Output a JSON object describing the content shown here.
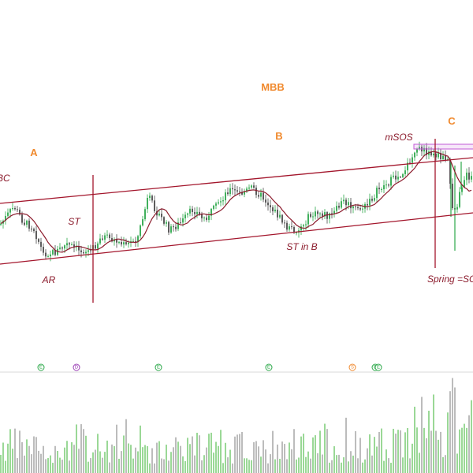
{
  "chart_data": {
    "type": "candlestick",
    "title": "",
    "colors": {
      "up": "#2ca84a",
      "down": "#4a4a4a",
      "ma": "#8b1a2b",
      "channel": "#a3162c",
      "phase_label": "#f0892d",
      "event_label": "#8b1a2b",
      "zone": "#c25bd6",
      "volume_up": "#8fd48b",
      "volume_down": "#b5b5b5",
      "divider": "#d9d9d9"
    },
    "phase_labels": [
      {
        "id": "mbb",
        "text": "MBB"
      },
      {
        "id": "a",
        "text": "A"
      },
      {
        "id": "b",
        "text": "B"
      },
      {
        "id": "c",
        "text": "C"
      }
    ],
    "event_labels": [
      {
        "id": "bc",
        "text": "BC"
      },
      {
        "id": "st",
        "text": "ST"
      },
      {
        "id": "ar",
        "text": "AR"
      },
      {
        "id": "st-in-b",
        "text": "ST in B"
      },
      {
        "id": "msos",
        "text": "mSOS"
      },
      {
        "id": "spring",
        "text": "Spring =SO"
      }
    ],
    "event_markers": [
      {
        "glyph": "E",
        "color": "#2ca84a"
      },
      {
        "glyph": "D",
        "color": "#9b3fb5"
      },
      {
        "glyph": "E",
        "color": "#2ca84a"
      },
      {
        "glyph": "E",
        "color": "#2ca84a"
      },
      {
        "glyph": "S",
        "color": "#f0892d"
      },
      {
        "glyph": "E",
        "color": "#2ca84a"
      },
      {
        "glyph": "E",
        "color": "#2ca84a"
      }
    ]
  }
}
